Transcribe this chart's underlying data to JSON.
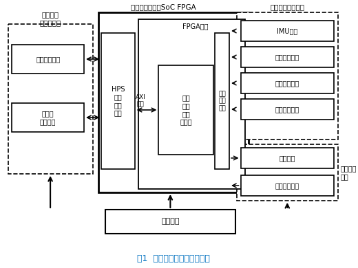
{
  "title": "图1  总体功能结构设计示意图",
  "title_color": "#0070c0",
  "bg_color": "#ffffff",
  "main_block_label": "弹载计算机主控SoC FPGA",
  "nav_block_label": "导航信息采集模块",
  "info_block_label": "信息记录\n与交互模块",
  "fpga_label": "FPGA部分",
  "hps_label": "HPS\n算法\n控制\n部分",
  "axi_label": "AXI\n总线",
  "solver_label": "弹道\n微分\n硬件\n求解器",
  "interface_label": "通用\n接口\n设计",
  "data_store_label": "数据存储模块",
  "interact_label": "交互与\n测试模块",
  "power_label": "电源系统",
  "imu_label": "IMU模块",
  "satellite_label": "卫星定位模块",
  "geomag_label": "地磁测量模块",
  "other_signal_label": "其他信号模块",
  "actuator_label": "执行机构",
  "hall_label": "霍尔传感模块",
  "flight_ctrl_label": "飞控执行\n模块"
}
